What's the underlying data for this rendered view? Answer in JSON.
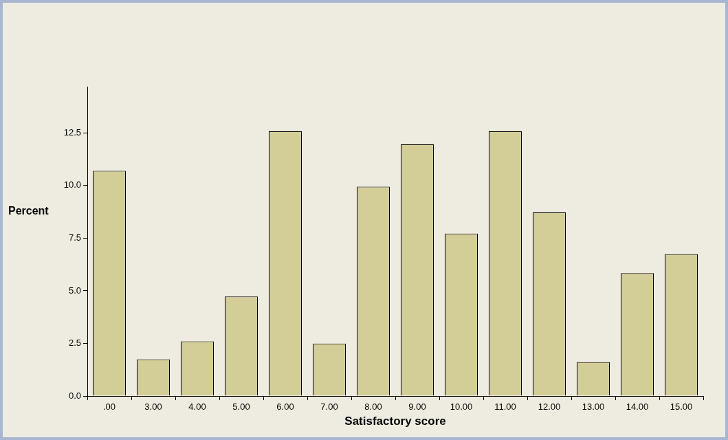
{
  "chart_data": {
    "type": "bar",
    "xlabel": "Satisfactory score",
    "ylabel": "Percent",
    "categories": [
      ".00",
      "3.00",
      "4.00",
      "5.00",
      "6.00",
      "7.00",
      "8.00",
      "9.00",
      "10.00",
      "11.00",
      "12.00",
      "13.00",
      "14.00",
      "15.00"
    ],
    "values": [
      10.7,
      1.74,
      2.6,
      4.73,
      12.58,
      2.49,
      9.95,
      11.96,
      7.72,
      12.58,
      8.72,
      1.61,
      5.84,
      6.74
    ],
    "color": "#d3cd98",
    "ylim": [
      0,
      14.7
    ],
    "yticks": [
      {
        "value": 0,
        "label": "0.0"
      },
      2.5,
      {
        "value": 5,
        "label": "5.0"
      },
      7.5,
      {
        "value": 10,
        "label": "10.0"
      },
      12.5
    ],
    "grid": false,
    "legend": false
  }
}
